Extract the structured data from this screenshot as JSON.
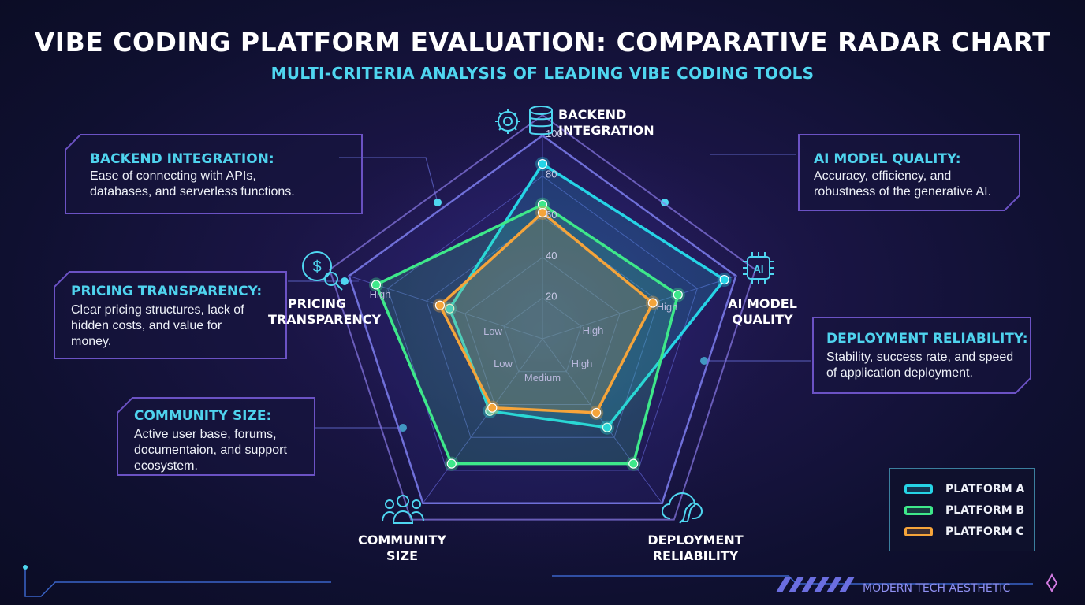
{
  "title": "VIBE CODING PLATFORM EVALUATION: COMPARATIVE RADAR CHART",
  "subtitle": "MULTI-CRITERIA ANALYSIS OF LEADING VIBE CODING TOOLS",
  "cards": [
    {
      "heading": "BACKEND INTEGRATION:",
      "body": "Ease of connecting with APIs, databases, and serverless functions."
    },
    {
      "heading": "AI MODEL QUALITY:",
      "body": "Accuracy, efficiency, and robustness of the generative AI."
    },
    {
      "heading": "PRICING TRANSPARENCY:",
      "body": "Clear pricing structures, lack of hidden costs, and value for money."
    },
    {
      "heading": "DEPLOYMENT RELIABILITY:",
      "body": "Stability, success rate, and speed of application deployment."
    },
    {
      "heading": "COMMUNITY SIZE:",
      "body": "Active user base, forums, documentaion, and support ecosystem."
    }
  ],
  "chart_data": {
    "type": "radar",
    "axes": [
      "BACKEND INTEGRATION",
      "AI MODEL QUALITY",
      "DEPLOYMENT RELIABILITY",
      "COMMUNITY SIZE",
      "PRICING TRANSPARENCY"
    ],
    "rlim": [
      0,
      100
    ],
    "radial_ticks": [
      "20",
      "40",
      "60",
      "80",
      "100"
    ],
    "qualitative_labels": [
      "High",
      "High",
      "High",
      "Medium",
      "Low",
      "Low",
      "High"
    ],
    "series": [
      {
        "name": "PLATFORM A",
        "color": "#26d4e6",
        "values": [
          86,
          94,
          54,
          44,
          48
        ]
      },
      {
        "name": "PLATFORM B",
        "color": "#3ee88a",
        "values": [
          66,
          70,
          76,
          76,
          86
        ]
      },
      {
        "name": "PLATFORM C",
        "color": "#f5a43a",
        "values": [
          62,
          57,
          45,
          42,
          53
        ]
      }
    ],
    "legend": "bottom-right"
  },
  "footer": "MODERN TECH AESTHETIC",
  "colors": {
    "accent": "#4fd6f0",
    "card_border": "#6b52c4"
  }
}
